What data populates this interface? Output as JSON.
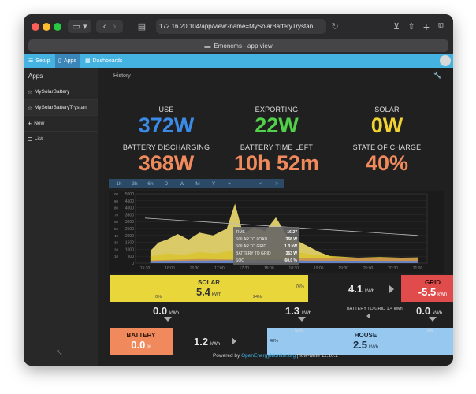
{
  "browser": {
    "url": "172.16.20.104/app/view?name=MySolarBatteryTrystan",
    "tab_title": "Emoncms - app view"
  },
  "nav": {
    "setup": "Setup",
    "apps": "Apps",
    "dashboards": "Dashboards"
  },
  "sidebar": {
    "header": "Apps",
    "items": [
      {
        "label": "MySolarBattery"
      },
      {
        "label": "MySolarBatteryTrystan"
      },
      {
        "label": "New"
      },
      {
        "label": "List"
      }
    ]
  },
  "main": {
    "section_title": "History"
  },
  "stats": {
    "use": {
      "label": "USE",
      "value": "372W",
      "color": "#3b8be6"
    },
    "exporting": {
      "label": "EXPORTING",
      "value": "22W",
      "color": "#52d04a"
    },
    "solar": {
      "label": "SOLAR",
      "value": "0W",
      "color": "#f0d232"
    },
    "battery": {
      "label": "BATTERY DISCHARGING",
      "value": "368W",
      "color": "#f08a5c"
    },
    "time_left": {
      "label": "BATTERY TIME LEFT",
      "value": "10h 52m",
      "color": "#f08a5c"
    },
    "soc": {
      "label": "STATE OF CHARGE",
      "value": "40%",
      "color": "#f08a5c"
    }
  },
  "range_buttons": [
    "1h",
    "3h",
    "6h",
    "D",
    "W",
    "M",
    "Y",
    "+",
    "-",
    "<",
    ">"
  ],
  "chart_data": {
    "type": "area",
    "y_ticks_left": [
      0,
      500,
      1000,
      1500,
      2000,
      2500,
      3000,
      3500,
      4000,
      4500,
      5000
    ],
    "y_ticks_right": [
      10,
      20,
      30,
      40,
      50,
      60,
      70,
      80,
      90,
      100
    ],
    "x_ticks": [
      "15:30",
      "16:00",
      "16:30",
      "17:00",
      "17:30",
      "18:00",
      "18:30",
      "19:00",
      "19:30",
      "20:00",
      "20:30",
      "21:00"
    ],
    "series": [
      {
        "name": "SOLAR TO LOAD",
        "color": "#d9c431"
      },
      {
        "name": "SOLAR TO GRID",
        "color": "#f0de70"
      },
      {
        "name": "BATTERY TO GRID",
        "color": "#c99050"
      },
      {
        "name": "SOC",
        "color": "#bbbbbb"
      }
    ],
    "tooltip": {
      "rows": [
        {
          "label": "TIME",
          "value": "16:27"
        },
        {
          "label": "SOLAR TO LOAD",
          "value": "368 W"
        },
        {
          "label": "SOLAR TO GRID",
          "value": "1.3 kW"
        },
        {
          "label": "BATTERY TO GRID",
          "value": "363 W"
        },
        {
          "label": "SOC",
          "value": "60.0 %"
        }
      ]
    }
  },
  "flow": {
    "solar": {
      "title": "SOLAR",
      "value": "5.4",
      "unit": "kWh",
      "pct_left": "0%",
      "pct_mid": "24%",
      "pct_right": "76%",
      "color": "#e8d63a"
    },
    "solar_to_grid": {
      "value": "4.1",
      "unit": "kWh"
    },
    "grid": {
      "title": "GRID",
      "value": "-5.5",
      "unit": "kWh",
      "color": "#e04c4c"
    },
    "grid_to_battery": {
      "value": "0.0",
      "unit": "kWh"
    },
    "solar_to_house": {
      "value": "1.3",
      "unit": "kWh"
    },
    "battery_to_grid": {
      "label": "BATTERY TO GRID",
      "value": "1.4",
      "unit": "kWh"
    },
    "grid_to_house": {
      "value": "0.0",
      "unit": "kWh"
    },
    "battery": {
      "title": "BATTERY",
      "value": "0.0",
      "unit": "%",
      "color": "#f08a5c"
    },
    "battery_to_house": {
      "value": "1.2",
      "unit": "kWh"
    },
    "house": {
      "title": "HOUSE",
      "value": "2.5",
      "unit": "kWh",
      "pct_left": "48%",
      "pct_top_left": "52%",
      "pct_top_right": "0%",
      "color": "#96c8f0"
    }
  },
  "footer": {
    "prefix": "Powered by",
    "link": "OpenEnergyMonitor.org",
    "suffix": "| low-write 11.10.2"
  }
}
